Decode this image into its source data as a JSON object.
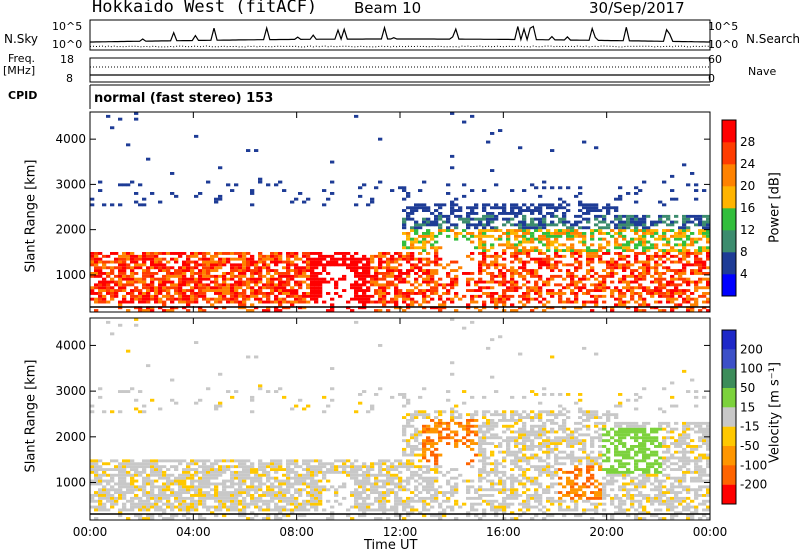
{
  "header": {
    "station": "Hokkaido West (fitACF)",
    "beam": "Beam 10",
    "date": "30/Sep/2017"
  },
  "noise_panel": {
    "left_label": "N.Sky",
    "right_label": "N.Search",
    "ticks_left": [
      "10^5",
      "10^0"
    ],
    "ticks_right": [
      "10^5",
      "10^0"
    ]
  },
  "freq_panel": {
    "left_label_1": "Freq.",
    "left_label_2": "[MHz]",
    "right_label": "Nave",
    "ticks_left": [
      "18",
      "8"
    ],
    "ticks_right": [
      "60",
      "0"
    ]
  },
  "cpid": {
    "label": "CPID",
    "text": "normal (fast stereo) 153"
  },
  "chart_data": [
    {
      "type": "heatmap",
      "quantity": "Power",
      "ylabel": "Slant Range [km]",
      "ylim": [
        180,
        4600
      ],
      "yticks": [
        1000,
        2000,
        3000,
        4000
      ],
      "colorbar_label": "Power [dB]",
      "colorbar_ticks": [
        4,
        8,
        12,
        16,
        20,
        24,
        28
      ],
      "colorbar_range": [
        0,
        32
      ],
      "colors": [
        "#0000ff",
        "#1e3c96",
        "#3c8c6e",
        "#32be3c",
        "#ffb400",
        "#ff8200",
        "#ff3c00",
        "#ff0000"
      ]
    },
    {
      "type": "heatmap",
      "quantity": "Velocity",
      "ylabel": "Slant Range [km]",
      "xlabel": "Time UT",
      "ylim": [
        180,
        4600
      ],
      "yticks": [
        1000,
        2000,
        3000,
        4000
      ],
      "xticks": [
        "00:00",
        "04:00",
        "08:00",
        "12:00",
        "16:00",
        "20:00",
        "00:00"
      ],
      "colorbar_label": "Velocity [m s⁻¹]",
      "colorbar_ticks": [
        "200",
        "100",
        "50",
        "15",
        "-15",
        "-50",
        "-100",
        "-200"
      ],
      "colors": [
        "#1e28c8",
        "#3c50c8",
        "#3c8c5a",
        "#7cd23c",
        "#c8c8c8",
        "#ffc800",
        "#ff9600",
        "#ff6400",
        "#ff0000"
      ]
    }
  ]
}
